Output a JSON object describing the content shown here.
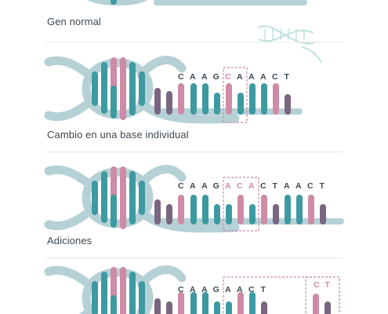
{
  "colors": {
    "backbone": "#b6d1d6",
    "teal": "#3d9aa1",
    "pink": "#cf8ba6",
    "purple": "#7a6580",
    "box": "#cf8ba6",
    "text": "#3b4a56"
  },
  "icons": [
    "dna-icon"
  ],
  "panels": [
    {
      "label": "Gen normal",
      "sequence": [],
      "highlight": ""
    },
    {
      "label": "Cambio en una base individual",
      "sequence": [
        "C",
        "A",
        "A",
        "G",
        "C",
        "A",
        "A",
        "A",
        "C",
        "T"
      ],
      "highlight": "single-base"
    },
    {
      "label": "Adiciones",
      "sequence": [
        "C",
        "A",
        "A",
        "G",
        "A",
        "C",
        "A",
        "C",
        "T",
        "A",
        "A",
        "C",
        "T"
      ],
      "highlight": "insertion"
    },
    {
      "label": "",
      "sequence": [
        "C",
        "A",
        "A",
        "G",
        "A",
        "A",
        "C",
        "T"
      ],
      "extra_sequence": [
        "C",
        "T"
      ],
      "highlight": "deletion"
    }
  ]
}
